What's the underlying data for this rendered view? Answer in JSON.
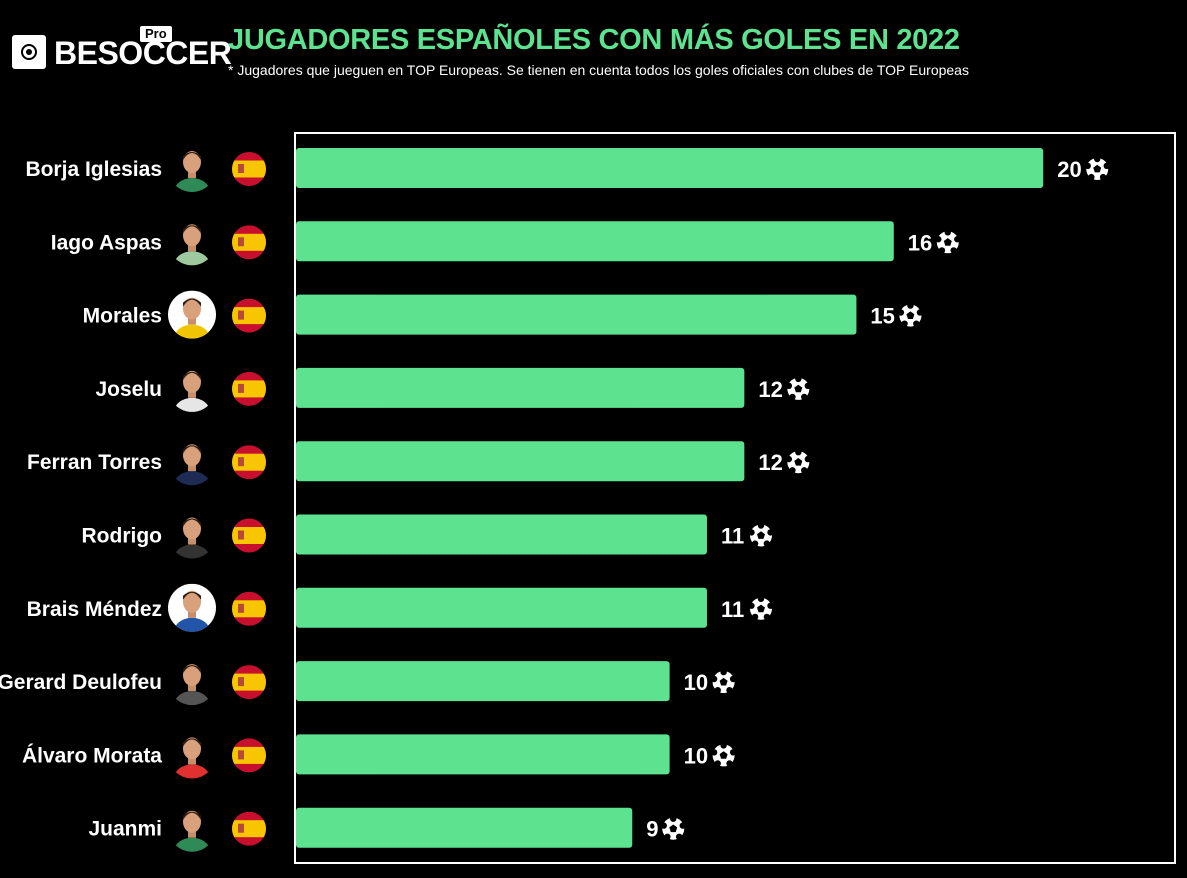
{
  "brand": {
    "name": "BESOCCER",
    "badge": "Pro"
  },
  "title": "JUGADORES ESPAÑOLES CON MÁS GOLES EN 2022",
  "subtitle": "* Jugadores que jueguen en TOP Europeas. Se tienen en cuenta todos los goles oficiales con clubes de TOP Europeas",
  "colors": {
    "bar": "#5de38f",
    "title": "#5de38f",
    "background": "#000000",
    "text": "#ffffff",
    "flag_red": "#c8102e",
    "flag_yellow": "#f7c600"
  },
  "icons": {
    "goal": "soccer-ball-icon",
    "flag": "spain-flag-icon",
    "player": "player-photo-icon"
  },
  "chart_data": {
    "type": "bar",
    "orientation": "horizontal",
    "title": "JUGADORES ESPAÑOLES CON MÁS GOLES EN 2022",
    "xlabel": "",
    "ylabel": "",
    "xlim": [
      0,
      23.5
    ],
    "grid": false,
    "legend": "none",
    "categories": [
      "Borja Iglesias",
      "Iago Aspas",
      "Morales",
      "Joselu",
      "Ferran Torres",
      "Rodrigo",
      "Brais Méndez",
      "Gerard Deulofeu",
      "Álvaro Morata",
      "Juanmi"
    ],
    "values": [
      20,
      16,
      15,
      12,
      12,
      11,
      11,
      10,
      10,
      9
    ],
    "data_labels": [
      "20",
      "16",
      "15",
      "12",
      "12",
      "11",
      "11",
      "10",
      "10",
      "9"
    ]
  }
}
